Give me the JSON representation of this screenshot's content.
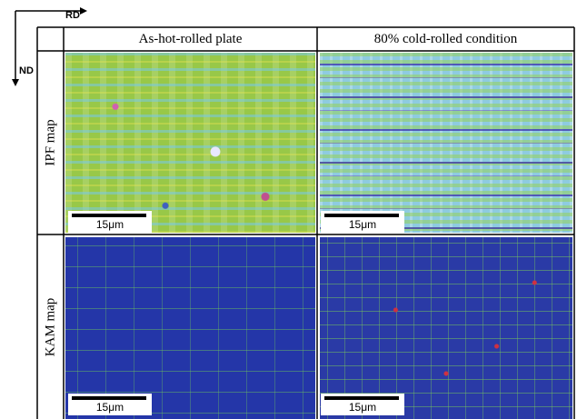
{
  "axes": {
    "horizontal": "RD",
    "vertical": "ND"
  },
  "columns": [
    "As-hot-rolled plate",
    "80% cold-rolled condition"
  ],
  "rows": [
    {
      "label": "IPF map",
      "scale_bars": [
        "15μm",
        "15μm"
      ]
    },
    {
      "label": "KAM map",
      "scale_bars": [
        "15μm",
        "15μm"
      ]
    }
  ]
}
